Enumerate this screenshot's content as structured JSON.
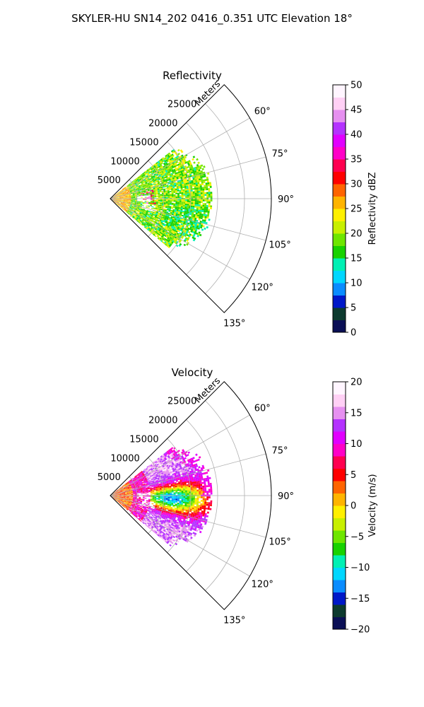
{
  "figure": {
    "title": "SKYLER-HU  SN14_202  0416_0.351 UTC Elevation 18°"
  },
  "chart_data": [
    {
      "type": "heatmap",
      "projection": "polar-sector",
      "title": "Reflectivity",
      "radial_axis_label": "Meters",
      "radial_ticks": [
        "5000",
        "10000",
        "15000",
        "20000",
        "25000"
      ],
      "radial_tick_values": [
        5000,
        10000,
        15000,
        20000,
        25000
      ],
      "radial_range": [
        0,
        30000
      ],
      "angular_ticks": [
        "60°",
        "75°",
        "90°",
        "105°",
        "120°",
        "135°"
      ],
      "angular_tick_values": [
        60,
        75,
        90,
        105,
        120,
        135
      ],
      "angular_range": [
        45,
        135
      ],
      "grid": true,
      "data_extent_m": 19000,
      "colorbar": {
        "label": "Reflectivity dBZ",
        "range": [
          0,
          50
        ],
        "ticks": [
          "0",
          "5",
          "10",
          "15",
          "20",
          "25",
          "30",
          "35",
          "40",
          "45",
          "50"
        ],
        "tick_values": [
          0,
          5,
          10,
          15,
          20,
          25,
          30,
          35,
          40,
          45,
          50
        ],
        "colormap": [
          "#0a0f55",
          "#0d3a2f",
          "#0018c8",
          "#0a8cff",
          "#00d7ff",
          "#00f0b4",
          "#18d200",
          "#6ee600",
          "#c8f000",
          "#fff000",
          "#ffb400",
          "#ff6400",
          "#ff0000",
          "#ff0050",
          "#ff00c8",
          "#e100ff",
          "#b432ff",
          "#e690f0",
          "#ffd0f5",
          "#fff5ff"
        ]
      },
      "dominant_value_range": [
        15,
        25
      ]
    },
    {
      "type": "heatmap",
      "projection": "polar-sector",
      "title": "Velocity",
      "radial_axis_label": "Meters",
      "radial_ticks": [
        "5000",
        "10000",
        "15000",
        "20000",
        "25000"
      ],
      "radial_tick_values": [
        5000,
        10000,
        15000,
        20000,
        25000
      ],
      "radial_range": [
        0,
        30000
      ],
      "angular_ticks": [
        "60°",
        "75°",
        "90°",
        "105°",
        "120°",
        "135°"
      ],
      "angular_tick_values": [
        60,
        75,
        90,
        105,
        120,
        135
      ],
      "angular_range": [
        45,
        135
      ],
      "grid": true,
      "data_extent_m": 19000,
      "colorbar": {
        "label": "Velocity (m/s)",
        "range": [
          -20,
          20
        ],
        "ticks": [
          "−20",
          "−15",
          "−10",
          "−5",
          "0",
          "5",
          "10",
          "15",
          "20"
        ],
        "tick_values": [
          -20,
          -15,
          -10,
          -5,
          0,
          5,
          10,
          15,
          20
        ],
        "colormap": [
          "#0a0f55",
          "#0d3a2f",
          "#0018c8",
          "#0a8cff",
          "#00d7ff",
          "#00f0b4",
          "#18d200",
          "#6ee600",
          "#c8f000",
          "#fff000",
          "#ffb400",
          "#ff6400",
          "#ff0000",
          "#ff0050",
          "#ff00c8",
          "#e100ff",
          "#b432ff",
          "#e690f0",
          "#ffd0f5",
          "#fff5ff"
        ]
      },
      "dominant_value_range": [
        -12,
        15
      ]
    }
  ]
}
